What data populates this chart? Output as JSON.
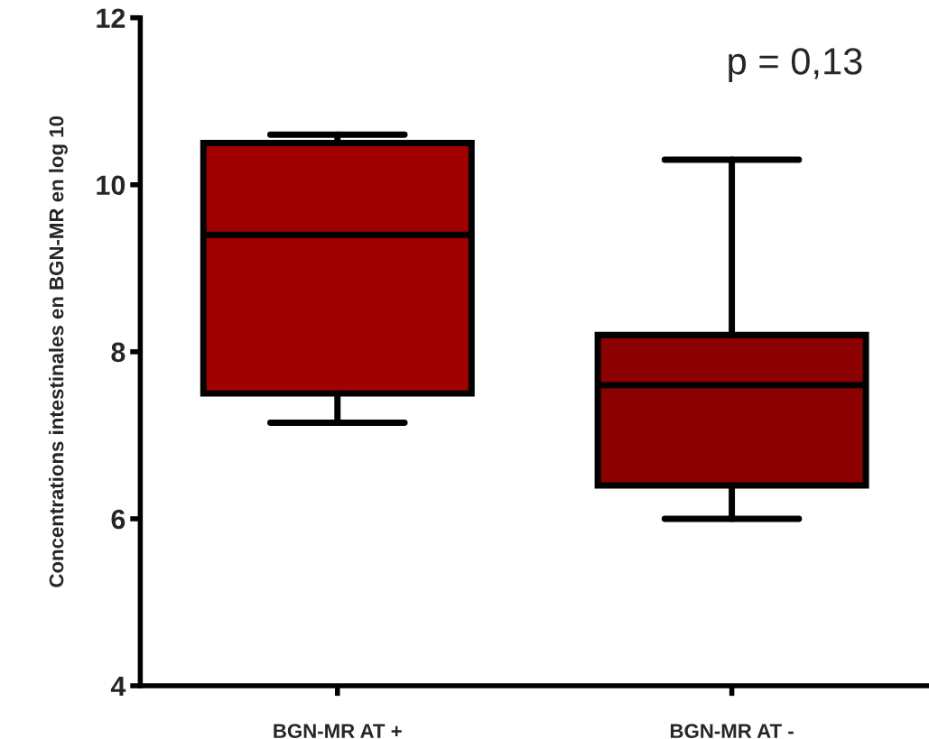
{
  "chart_data": {
    "type": "box",
    "ylabel": "Concentrations intestinales en BGN-MR en log 10",
    "categories": [
      "BGN-MR AT +",
      "BGN-MR AT -"
    ],
    "boxes": [
      {
        "low": 7.15,
        "q1": 7.5,
        "median": 9.4,
        "q3": 10.5,
        "high": 10.6
      },
      {
        "low": 6.0,
        "q1": 6.4,
        "median": 7.6,
        "q3": 8.2,
        "high": 10.3
      }
    ],
    "colors": [
      "#a00000",
      "#8b0000"
    ],
    "ylim": [
      4,
      12
    ],
    "yticks": [
      4,
      6,
      8,
      10,
      12
    ],
    "grid": false,
    "legend": false,
    "annotations": [
      "p = 0,13"
    ]
  }
}
